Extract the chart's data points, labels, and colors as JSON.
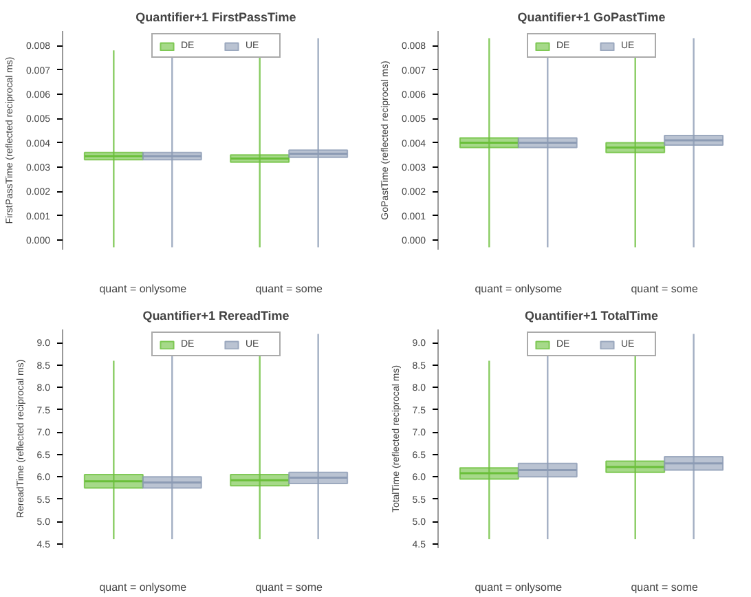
{
  "chart_data": [
    {
      "type": "box",
      "title": "Quantifier+1 FirstPassTime",
      "ylabel": "FirstPassTime (reflected reciprocal ms)",
      "categories": [
        "quant = onlysome",
        "quant = some"
      ],
      "ylim": [
        -0.0004,
        0.0086
      ],
      "yticks": [
        {
          "value": 0,
          "label": "0.000"
        },
        {
          "value": 0.001,
          "label": "0.001"
        },
        {
          "value": 0.002,
          "label": "0.002"
        },
        {
          "value": 0.003,
          "label": "0.003"
        },
        {
          "value": 0.004,
          "label": "0.004"
        },
        {
          "value": 0.005,
          "label": "0.005"
        },
        {
          "value": 0.006,
          "label": "0.006"
        },
        {
          "value": 0.007,
          "label": "0.007"
        },
        {
          "value": 0.008,
          "label": "0.008"
        }
      ],
      "grid": false,
      "legend": "top",
      "series": [
        {
          "name": "DE",
          "color": "#6abf3a",
          "boxes": [
            {
              "low": -0.0003,
              "q1": 0.0033,
              "median": 0.00345,
              "q3": 0.0036,
              "high": 0.0078
            },
            {
              "low": -0.0003,
              "q1": 0.0032,
              "median": 0.00335,
              "q3": 0.0035,
              "high": 0.0079
            }
          ]
        },
        {
          "name": "UE",
          "color": "#8c9bb4",
          "boxes": [
            {
              "low": -0.0003,
              "q1": 0.0033,
              "median": 0.00345,
              "q3": 0.0036,
              "high": 0.008
            },
            {
              "low": -0.0003,
              "q1": 0.0034,
              "median": 0.00355,
              "q3": 0.0037,
              "high": 0.0083
            }
          ]
        }
      ]
    },
    {
      "type": "box",
      "title": "Quantifier+1 GoPastTime",
      "ylabel": "GoPastTime (reflected reciprocal ms)",
      "categories": [
        "quant = onlysome",
        "quant = some"
      ],
      "ylim": [
        -0.0004,
        0.0086
      ],
      "yticks": [
        {
          "value": 0,
          "label": "0.000"
        },
        {
          "value": 0.001,
          "label": "0.001"
        },
        {
          "value": 0.002,
          "label": "0.002"
        },
        {
          "value": 0.003,
          "label": "0.003"
        },
        {
          "value": 0.004,
          "label": "0.004"
        },
        {
          "value": 0.005,
          "label": "0.005"
        },
        {
          "value": 0.006,
          "label": "0.006"
        },
        {
          "value": 0.007,
          "label": "0.007"
        },
        {
          "value": 0.008,
          "label": "0.008"
        }
      ],
      "grid": false,
      "legend": "top",
      "series": [
        {
          "name": "DE",
          "color": "#6abf3a",
          "boxes": [
            {
              "low": -0.0003,
              "q1": 0.0038,
              "median": 0.004,
              "q3": 0.0042,
              "high": 0.0083
            },
            {
              "low": -0.0003,
              "q1": 0.0036,
              "median": 0.0038,
              "q3": 0.004,
              "high": 0.0082
            }
          ]
        },
        {
          "name": "UE",
          "color": "#8c9bb4",
          "boxes": [
            {
              "low": -0.0003,
              "q1": 0.0038,
              "median": 0.004,
              "q3": 0.0042,
              "high": 0.0082
            },
            {
              "low": -0.0003,
              "q1": 0.0039,
              "median": 0.0041,
              "q3": 0.0043,
              "high": 0.0083
            }
          ]
        }
      ]
    },
    {
      "type": "box",
      "title": "Quantifier+1 RereadTime",
      "ylabel": "RereadTime (reflected reciprocal ms)",
      "categories": [
        "quant = onlysome",
        "quant = some"
      ],
      "ylim": [
        4.4,
        9.3
      ],
      "yticks": [
        4.5,
        {
          "value": 5,
          "label": "5.0"
        },
        5.5,
        {
          "value": 6,
          "label": "6.0"
        },
        6.5,
        {
          "value": 7,
          "label": "7.0"
        },
        7.5,
        {
          "value": 8,
          "label": "8.0"
        },
        8.5,
        {
          "value": 9,
          "label": "9.0"
        }
      ],
      "grid": false,
      "legend": "top",
      "series": [
        {
          "name": "DE",
          "color": "#6abf3a",
          "boxes": [
            {
              "low": 4.6,
              "q1": 5.75,
              "median": 5.9,
              "q3": 6.05,
              "high": 8.6
            },
            {
              "low": 4.6,
              "q1": 5.8,
              "median": 5.92,
              "q3": 6.05,
              "high": 8.9
            }
          ]
        },
        {
          "name": "UE",
          "color": "#8c9bb4",
          "boxes": [
            {
              "low": 4.6,
              "q1": 5.75,
              "median": 5.87,
              "q3": 6.0,
              "high": 8.7
            },
            {
              "low": 4.6,
              "q1": 5.85,
              "median": 5.98,
              "q3": 6.1,
              "high": 9.2
            }
          ]
        }
      ]
    },
    {
      "type": "box",
      "title": "Quantifier+1 TotalTime",
      "ylabel": "TotalTime (reflected reciprocal ms)",
      "categories": [
        "quant = onlysome",
        "quant = some"
      ],
      "ylim": [
        4.4,
        9.3
      ],
      "yticks": [
        4.5,
        {
          "value": 5,
          "label": "5.0"
        },
        5.5,
        {
          "value": 6,
          "label": "6.0"
        },
        6.5,
        {
          "value": 7,
          "label": "7.0"
        },
        7.5,
        {
          "value": 8,
          "label": "8.0"
        },
        8.5,
        {
          "value": 9,
          "label": "9.0"
        }
      ],
      "grid": false,
      "legend": "top",
      "series": [
        {
          "name": "DE",
          "color": "#6abf3a",
          "boxes": [
            {
              "low": 4.6,
              "q1": 5.95,
              "median": 6.08,
              "q3": 6.2,
              "high": 8.6
            },
            {
              "low": 4.6,
              "q1": 6.1,
              "median": 6.22,
              "q3": 6.35,
              "high": 8.9
            }
          ]
        },
        {
          "name": "UE",
          "color": "#8c9bb4",
          "boxes": [
            {
              "low": 4.6,
              "q1": 6.0,
              "median": 6.15,
              "q3": 6.3,
              "high": 8.9
            },
            {
              "low": 4.6,
              "q1": 6.15,
              "median": 6.3,
              "q3": 6.45,
              "high": 9.2
            }
          ]
        }
      ]
    }
  ]
}
